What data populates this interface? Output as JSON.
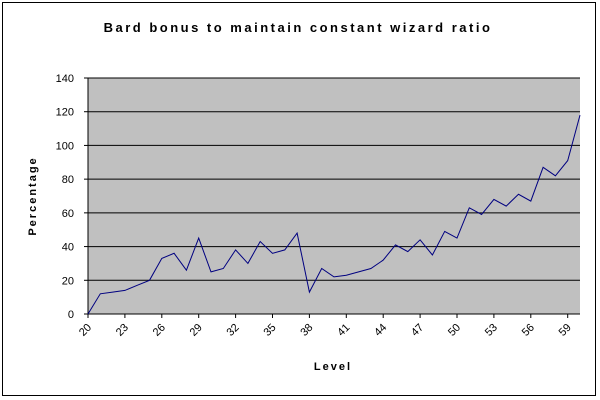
{
  "chart_data": {
    "type": "line",
    "title": "Bard bonus to maintain constant wizard ratio",
    "xlabel": "Level",
    "ylabel": "Percentage",
    "ylim": [
      0,
      140
    ],
    "yticks": [
      0,
      20,
      40,
      60,
      80,
      100,
      120,
      140
    ],
    "x_tick_labels": [
      "20",
      "23",
      "26",
      "29",
      "32",
      "35",
      "38",
      "41",
      "44",
      "47",
      "50",
      "53",
      "56",
      "59"
    ],
    "grid": "horizontal",
    "legend": "none",
    "plot_background": "#c0c0c0",
    "line_color": "#000080",
    "series": [
      {
        "x": [
          20,
          21,
          22,
          23,
          24,
          25,
          26,
          27,
          28,
          29,
          30,
          31,
          32,
          33,
          34,
          35,
          36,
          37,
          38,
          39,
          40,
          41,
          42,
          43,
          44,
          45,
          46,
          47,
          48,
          49,
          50,
          51,
          52,
          53,
          54,
          55,
          56,
          57,
          58,
          59,
          60
        ],
        "values": [
          0,
          12,
          13,
          14,
          17,
          20,
          33,
          36,
          26,
          45,
          25,
          27,
          38,
          30,
          43,
          36,
          38,
          48,
          13,
          27,
          22,
          23,
          25,
          27,
          32,
          41,
          37,
          44,
          35,
          49,
          45,
          63,
          59,
          68,
          64,
          71,
          67,
          87,
          82,
          91,
          118
        ]
      }
    ]
  }
}
